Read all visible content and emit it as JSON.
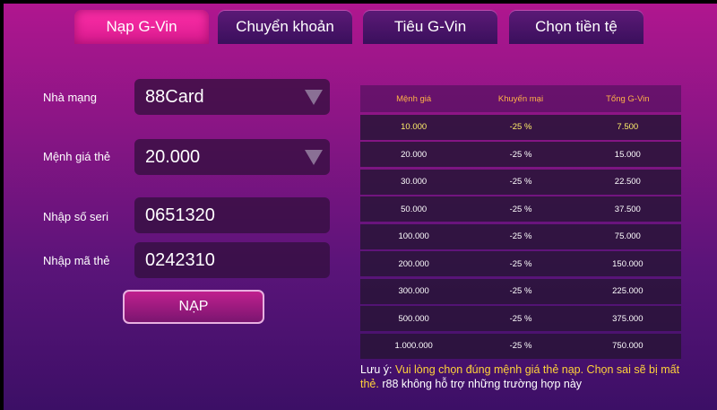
{
  "tabs": [
    {
      "label": "Nạp G-Vin",
      "active": true
    },
    {
      "label": "Chuyển khoản"
    },
    {
      "label": "Tiêu G-Vin"
    },
    {
      "label": "Chọn tiền tệ"
    }
  ],
  "form": {
    "network_label": "Nhà mạng",
    "network_value": "88Card",
    "denomination_label": "Mệnh giá thẻ",
    "denomination_value": "20.000",
    "serial_label": "Nhập số seri",
    "serial_value": "0651320",
    "code_label": "Nhập mã thẻ",
    "code_value": "0242310",
    "submit_label": "NẠP"
  },
  "table": {
    "headers": [
      "Mệnh giá",
      "Khuyến mại",
      "Tổng G-Vin"
    ],
    "rows": [
      [
        "10.000",
        "-25 %",
        "7.500"
      ],
      [
        "20.000",
        "-25 %",
        "15.000"
      ],
      [
        "30.000",
        "-25 %",
        "22.500"
      ],
      [
        "50.000",
        "-25 %",
        "37.500"
      ],
      [
        "100.000",
        "-25 %",
        "75.000"
      ],
      [
        "200.000",
        "-25 %",
        "150.000"
      ],
      [
        "300.000",
        "-25 %",
        "225.000"
      ],
      [
        "500.000",
        "-25 %",
        "375.000"
      ],
      [
        "1.000.000",
        "-25 %",
        "750.000"
      ]
    ]
  },
  "note": {
    "prefix": "Lưu ý:",
    "warning": "Vui lòng chọn đúng mệnh giá thẻ nạp. Chọn sai sẽ bị mất thẻ.",
    "suffix": "r88 không hỗ trợ những trường hợp này"
  },
  "colors": {
    "active_tab": "#ff2fa8",
    "header_text": "#ffb347",
    "warning_text": "#ffd23a"
  }
}
